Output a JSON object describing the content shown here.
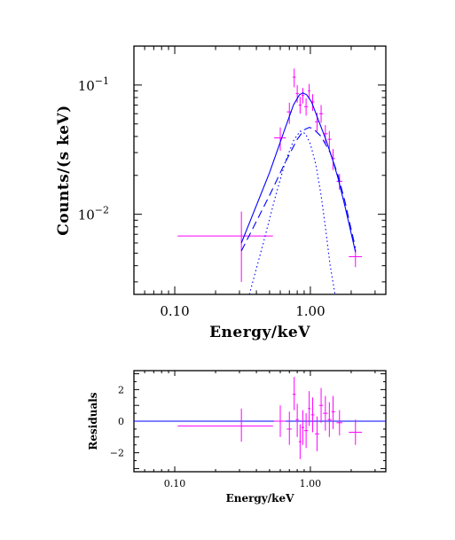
{
  "colors": {
    "data": "#ff00ff",
    "model": "#0000ff",
    "axes": "#000000"
  },
  "chart_data": [
    {
      "type": "scatter",
      "xlabel": "Energy/keV",
      "ylabel": "Counts/(s keV)",
      "xscale": "log",
      "yscale": "log",
      "xlim": [
        0.05,
        3.6
      ],
      "ylim": [
        0.0024,
        0.2
      ],
      "x_ticks": [
        {
          "value": 0.1,
          "label": "0.10"
        },
        {
          "value": 1.0,
          "label": "1.00"
        }
      ],
      "y_ticks": [
        {
          "value": 0.1,
          "mant": "10",
          "exp": "−1"
        },
        {
          "value": 0.01,
          "mant": "10",
          "exp": "−2"
        }
      ],
      "series": [
        {
          "style": "data-crosses",
          "color": "#ff00ff",
          "points": [
            {
              "x": 0.31,
              "xlo": 0.105,
              "xhi": 0.53,
              "y": 0.0068,
              "ylo": 0.003,
              "yhi": 0.0105
            },
            {
              "x": 0.6,
              "xlo": 0.54,
              "xhi": 0.66,
              "y": 0.039,
              "ylo": 0.031,
              "yhi": 0.047
            },
            {
              "x": 0.7,
              "xlo": 0.67,
              "xhi": 0.73,
              "y": 0.062,
              "ylo": 0.05,
              "yhi": 0.073
            },
            {
              "x": 0.76,
              "xlo": 0.74,
              "xhi": 0.78,
              "y": 0.115,
              "ylo": 0.096,
              "yhi": 0.134
            },
            {
              "x": 0.8,
              "xlo": 0.78,
              "xhi": 0.82,
              "y": 0.086,
              "ylo": 0.073,
              "yhi": 0.1
            },
            {
              "x": 0.84,
              "xlo": 0.82,
              "xhi": 0.86,
              "y": 0.07,
              "ylo": 0.06,
              "yhi": 0.081
            },
            {
              "x": 0.88,
              "xlo": 0.86,
              "xhi": 0.9,
              "y": 0.083,
              "ylo": 0.072,
              "yhi": 0.095
            },
            {
              "x": 0.93,
              "xlo": 0.9,
              "xhi": 0.96,
              "y": 0.068,
              "ylo": 0.058,
              "yhi": 0.079
            },
            {
              "x": 0.98,
              "xlo": 0.96,
              "xhi": 1.0,
              "y": 0.09,
              "ylo": 0.078,
              "yhi": 0.102
            },
            {
              "x": 1.04,
              "xlo": 1.01,
              "xhi": 1.07,
              "y": 0.074,
              "ylo": 0.063,
              "yhi": 0.085
            },
            {
              "x": 1.12,
              "xlo": 1.08,
              "xhi": 1.16,
              "y": 0.052,
              "ylo": 0.044,
              "yhi": 0.061
            },
            {
              "x": 1.2,
              "xlo": 1.16,
              "xhi": 1.24,
              "y": 0.06,
              "ylo": 0.051,
              "yhi": 0.07
            },
            {
              "x": 1.29,
              "xlo": 1.24,
              "xhi": 1.34,
              "y": 0.042,
              "ylo": 0.035,
              "yhi": 0.049
            },
            {
              "x": 1.38,
              "xlo": 1.34,
              "xhi": 1.43,
              "y": 0.038,
              "ylo": 0.032,
              "yhi": 0.044
            },
            {
              "x": 1.47,
              "xlo": 1.43,
              "xhi": 1.52,
              "y": 0.027,
              "ylo": 0.022,
              "yhi": 0.032
            },
            {
              "x": 1.64,
              "xlo": 1.56,
              "xhi": 1.72,
              "y": 0.018,
              "ylo": 0.0155,
              "yhi": 0.0205
            },
            {
              "x": 2.15,
              "xlo": 1.92,
              "xhi": 2.4,
              "y": 0.0047,
              "ylo": 0.0039,
              "yhi": 0.0054
            }
          ]
        },
        {
          "style": "solid",
          "color": "#0000ff",
          "component": "total model",
          "points": [
            [
              0.31,
              0.006
            ],
            [
              0.5,
              0.021
            ],
            [
              0.65,
              0.046
            ],
            [
              0.75,
              0.07
            ],
            [
              0.83,
              0.084
            ],
            [
              0.88,
              0.087
            ],
            [
              0.94,
              0.084
            ],
            [
              1.02,
              0.074
            ],
            [
              1.15,
              0.053
            ],
            [
              1.3,
              0.038
            ],
            [
              1.45,
              0.027
            ],
            [
              1.6,
              0.019
            ],
            [
              1.8,
              0.0115
            ],
            [
              2.02,
              0.0068
            ],
            [
              2.15,
              0.0051
            ]
          ]
        },
        {
          "style": "dashed",
          "color": "#0000ff",
          "component": "model component 1",
          "points": [
            [
              0.31,
              0.0052
            ],
            [
              0.5,
              0.014
            ],
            [
              0.65,
              0.025
            ],
            [
              0.8,
              0.038
            ],
            [
              0.9,
              0.045
            ],
            [
              0.98,
              0.047
            ],
            [
              1.05,
              0.046
            ],
            [
              1.2,
              0.04
            ],
            [
              1.4,
              0.03
            ],
            [
              1.6,
              0.02
            ],
            [
              1.8,
              0.0125
            ],
            [
              2.0,
              0.0076
            ],
            [
              2.15,
              0.0055
            ]
          ]
        },
        {
          "style": "dotted",
          "color": "#0000ff",
          "component": "model component 2",
          "points": [
            [
              0.355,
              0.0024
            ],
            [
              0.45,
              0.006
            ],
            [
              0.55,
              0.0135
            ],
            [
              0.65,
              0.025
            ],
            [
              0.75,
              0.037
            ],
            [
              0.84,
              0.044
            ],
            [
              0.92,
              0.042
            ],
            [
              1.0,
              0.035
            ],
            [
              1.1,
              0.024
            ],
            [
              1.2,
              0.014
            ],
            [
              1.3,
              0.0075
            ],
            [
              1.4,
              0.004
            ],
            [
              1.52,
              0.0024
            ]
          ]
        }
      ]
    },
    {
      "type": "scatter",
      "xlabel": "Energy/keV",
      "ylabel": "Residuals",
      "xscale": "log",
      "yscale": "linear",
      "xlim": [
        0.05,
        3.6
      ],
      "ylim": [
        -3.2,
        3.2
      ],
      "x_ticks": [
        {
          "value": 0.1,
          "label": "0.10"
        },
        {
          "value": 1.0,
          "label": "1.00"
        }
      ],
      "y_ticks": [
        {
          "value": 2,
          "label": "2"
        },
        {
          "value": 0,
          "label": "0"
        },
        {
          "value": -2,
          "label": "−2"
        }
      ],
      "zero_line": 0,
      "series": [
        {
          "style": "data-crosses",
          "color": "#ff00ff",
          "points": [
            {
              "x": 0.31,
              "xlo": 0.105,
              "xhi": 0.53,
              "y": -0.3,
              "ylo": -1.3,
              "yhi": 0.8
            },
            {
              "x": 0.6,
              "xlo": 0.54,
              "xhi": 0.66,
              "y": 0.0,
              "ylo": -1.0,
              "yhi": 1.0
            },
            {
              "x": 0.7,
              "xlo": 0.67,
              "xhi": 0.73,
              "y": -0.5,
              "ylo": -1.5,
              "yhi": 0.6
            },
            {
              "x": 0.76,
              "xlo": 0.74,
              "xhi": 0.78,
              "y": 1.7,
              "ylo": 0.7,
              "yhi": 2.8
            },
            {
              "x": 0.8,
              "xlo": 0.78,
              "xhi": 0.82,
              "y": 0.1,
              "ylo": -1.0,
              "yhi": 1.1
            },
            {
              "x": 0.84,
              "xlo": 0.82,
              "xhi": 0.86,
              "y": -1.3,
              "ylo": -2.4,
              "yhi": -0.2
            },
            {
              "x": 0.88,
              "xlo": 0.86,
              "xhi": 0.9,
              "y": -0.4,
              "ylo": -1.5,
              "yhi": 0.7
            },
            {
              "x": 0.93,
              "xlo": 0.9,
              "xhi": 0.96,
              "y": -0.6,
              "ylo": -1.7,
              "yhi": 0.5
            },
            {
              "x": 0.98,
              "xlo": 0.96,
              "xhi": 1.0,
              "y": 0.8,
              "ylo": -0.3,
              "yhi": 1.9
            },
            {
              "x": 1.04,
              "xlo": 1.01,
              "xhi": 1.07,
              "y": 0.4,
              "ylo": -0.7,
              "yhi": 1.5
            },
            {
              "x": 1.12,
              "xlo": 1.08,
              "xhi": 1.16,
              "y": -0.8,
              "ylo": -1.9,
              "yhi": 0.3
            },
            {
              "x": 1.2,
              "xlo": 1.16,
              "xhi": 1.24,
              "y": 1.0,
              "ylo": -0.1,
              "yhi": 2.1
            },
            {
              "x": 1.29,
              "xlo": 1.24,
              "xhi": 1.34,
              "y": 0.5,
              "ylo": -0.6,
              "yhi": 1.6
            },
            {
              "x": 1.38,
              "xlo": 1.34,
              "xhi": 1.43,
              "y": 0.1,
              "ylo": -1.0,
              "yhi": 1.2
            },
            {
              "x": 1.47,
              "xlo": 1.43,
              "xhi": 1.52,
              "y": 0.6,
              "ylo": -0.5,
              "yhi": 1.6
            },
            {
              "x": 1.64,
              "xlo": 1.56,
              "xhi": 1.72,
              "y": -0.1,
              "ylo": -0.9,
              "yhi": 0.7
            },
            {
              "x": 2.15,
              "xlo": 1.92,
              "xhi": 2.4,
              "y": -0.7,
              "ylo": -1.5,
              "yhi": 0.1
            }
          ]
        }
      ]
    }
  ]
}
